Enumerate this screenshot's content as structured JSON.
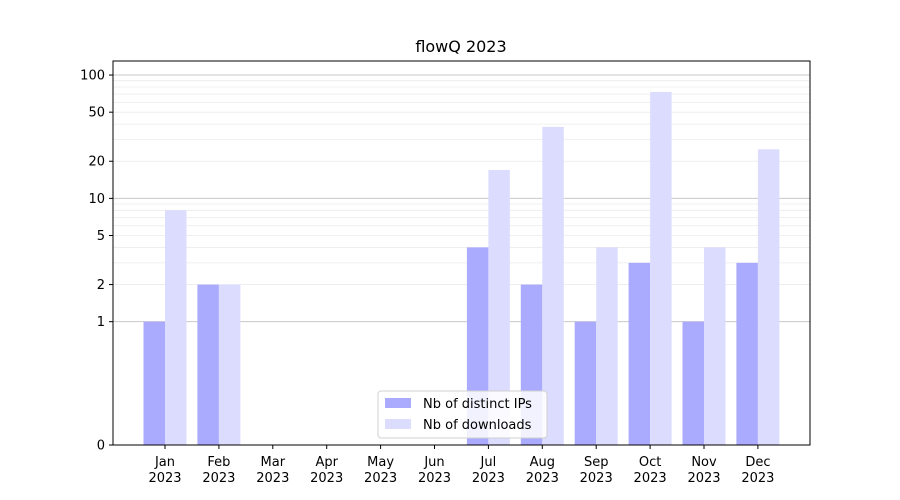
{
  "chart_data": {
    "type": "bar",
    "title": "flowQ 2023",
    "xlabel": "",
    "ylabel": "",
    "yscale": "symlog",
    "ylim": [
      0,
      130
    ],
    "yticks": [
      0,
      1,
      2,
      5,
      10,
      20,
      50,
      100
    ],
    "grid": "horizontal",
    "legend_position": "bottom-center",
    "categories": [
      [
        "Jan",
        "2023"
      ],
      [
        "Feb",
        "2023"
      ],
      [
        "Mar",
        "2023"
      ],
      [
        "Apr",
        "2023"
      ],
      [
        "May",
        "2023"
      ],
      [
        "Jun",
        "2023"
      ],
      [
        "Jul",
        "2023"
      ],
      [
        "Aug",
        "2023"
      ],
      [
        "Sep",
        "2023"
      ],
      [
        "Oct",
        "2023"
      ],
      [
        "Nov",
        "2023"
      ],
      [
        "Dec",
        "2023"
      ]
    ],
    "series": [
      {
        "name": "Nb of distinct IPs",
        "color": "#aaaaff",
        "values": [
          1,
          2,
          0,
          0,
          0,
          0,
          4,
          2,
          1,
          3,
          1,
          3
        ]
      },
      {
        "name": "Nb of downloads",
        "color": "#dcdcff",
        "values": [
          8,
          2,
          0,
          0,
          0,
          0,
          17,
          38,
          4,
          73,
          4,
          25
        ]
      }
    ]
  }
}
